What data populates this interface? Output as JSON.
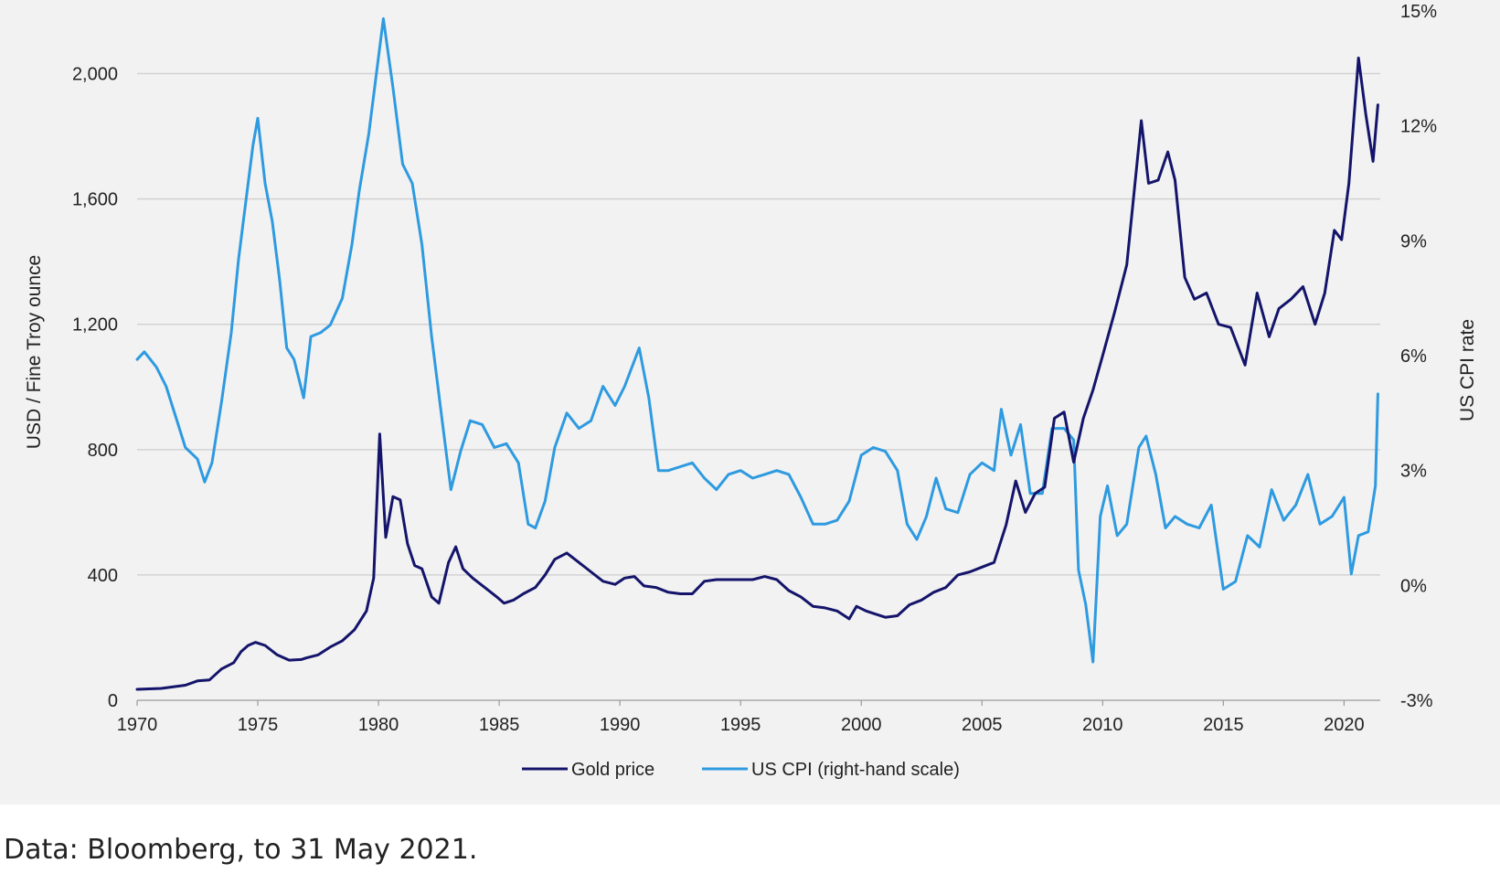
{
  "chart_data": {
    "type": "line",
    "title": "",
    "left_axis": {
      "label": "USD / Fine Troy ounce",
      "ylim": [
        0,
        2200
      ],
      "ticks": [
        "0",
        "400",
        "800",
        "1,200",
        "1,600",
        "2,000"
      ],
      "tick_values": [
        0,
        400,
        800,
        1200,
        1600,
        2000
      ]
    },
    "right_axis": {
      "label": "US CPI rate",
      "ylim": [
        -3,
        15
      ],
      "ticks": [
        "-3%",
        "0%",
        "3%",
        "6%",
        "9%",
        "12%",
        "15%"
      ],
      "tick_values": [
        -3,
        0,
        3,
        6,
        9,
        12,
        15
      ]
    },
    "x_axis": {
      "xlim": [
        1970,
        2021.5
      ],
      "ticks": [
        "1970",
        "1975",
        "1980",
        "1985",
        "1990",
        "1995",
        "2000",
        "2005",
        "2010",
        "2015",
        "2020"
      ],
      "tick_values": [
        1970,
        1975,
        1980,
        1985,
        1990,
        1995,
        2000,
        2005,
        2010,
        2015,
        2020
      ]
    },
    "grid": "horizontal",
    "legend_position": "bottom-center",
    "series": [
      {
        "name": "Gold price",
        "axis": "left",
        "color": "#14146b",
        "points": [
          [
            1970,
            35
          ],
          [
            1971,
            38
          ],
          [
            1972,
            48
          ],
          [
            1972.5,
            62
          ],
          [
            1973,
            65
          ],
          [
            1973.5,
            100
          ],
          [
            1974,
            120
          ],
          [
            1974.3,
            155
          ],
          [
            1974.6,
            175
          ],
          [
            1974.9,
            185
          ],
          [
            1975.3,
            175
          ],
          [
            1975.8,
            145
          ],
          [
            1976.3,
            128
          ],
          [
            1976.8,
            130
          ],
          [
            1977,
            135
          ],
          [
            1977.5,
            145
          ],
          [
            1978,
            170
          ],
          [
            1978.5,
            190
          ],
          [
            1979,
            225
          ],
          [
            1979.5,
            285
          ],
          [
            1979.8,
            390
          ],
          [
            1980.05,
            850
          ],
          [
            1980.3,
            520
          ],
          [
            1980.6,
            650
          ],
          [
            1980.9,
            640
          ],
          [
            1981.2,
            500
          ],
          [
            1981.5,
            430
          ],
          [
            1981.8,
            420
          ],
          [
            1982.2,
            330
          ],
          [
            1982.5,
            310
          ],
          [
            1982.9,
            440
          ],
          [
            1983.2,
            490
          ],
          [
            1983.5,
            420
          ],
          [
            1983.9,
            390
          ],
          [
            1984.4,
            360
          ],
          [
            1984.9,
            330
          ],
          [
            1985.2,
            310
          ],
          [
            1985.6,
            320
          ],
          [
            1986,
            340
          ],
          [
            1986.5,
            360
          ],
          [
            1986.9,
            400
          ],
          [
            1987.3,
            450
          ],
          [
            1987.8,
            470
          ],
          [
            1988.3,
            440
          ],
          [
            1988.8,
            410
          ],
          [
            1989.3,
            380
          ],
          [
            1989.8,
            370
          ],
          [
            1990.2,
            390
          ],
          [
            1990.6,
            395
          ],
          [
            1991,
            365
          ],
          [
            1991.5,
            360
          ],
          [
            1992,
            345
          ],
          [
            1992.5,
            340
          ],
          [
            1993,
            340
          ],
          [
            1993.5,
            380
          ],
          [
            1994,
            385
          ],
          [
            1994.5,
            385
          ],
          [
            1995,
            385
          ],
          [
            1995.5,
            385
          ],
          [
            1996,
            395
          ],
          [
            1996.5,
            385
          ],
          [
            1997,
            350
          ],
          [
            1997.5,
            330
          ],
          [
            1998,
            300
          ],
          [
            1998.5,
            295
          ],
          [
            1999,
            285
          ],
          [
            1999.5,
            260
          ],
          [
            1999.8,
            300
          ],
          [
            2000.2,
            285
          ],
          [
            2000.6,
            275
          ],
          [
            2001,
            265
          ],
          [
            2001.5,
            270
          ],
          [
            2002,
            305
          ],
          [
            2002.5,
            320
          ],
          [
            2003,
            345
          ],
          [
            2003.5,
            360
          ],
          [
            2004,
            400
          ],
          [
            2004.5,
            410
          ],
          [
            2005,
            425
          ],
          [
            2005.5,
            440
          ],
          [
            2006,
            560
          ],
          [
            2006.4,
            700
          ],
          [
            2006.8,
            600
          ],
          [
            2007.2,
            660
          ],
          [
            2007.6,
            680
          ],
          [
            2008,
            900
          ],
          [
            2008.4,
            920
          ],
          [
            2008.8,
            760
          ],
          [
            2009.2,
            900
          ],
          [
            2009.6,
            990
          ],
          [
            2010,
            1100
          ],
          [
            2010.5,
            1240
          ],
          [
            2011,
            1390
          ],
          [
            2011.6,
            1850
          ],
          [
            2011.9,
            1650
          ],
          [
            2012.3,
            1660
          ],
          [
            2012.7,
            1750
          ],
          [
            2013,
            1660
          ],
          [
            2013.4,
            1350
          ],
          [
            2013.8,
            1280
          ],
          [
            2014.3,
            1300
          ],
          [
            2014.8,
            1200
          ],
          [
            2015.3,
            1190
          ],
          [
            2015.9,
            1070
          ],
          [
            2016.4,
            1300
          ],
          [
            2016.9,
            1160
          ],
          [
            2017.3,
            1250
          ],
          [
            2017.8,
            1280
          ],
          [
            2018.3,
            1320
          ],
          [
            2018.8,
            1200
          ],
          [
            2019.2,
            1300
          ],
          [
            2019.6,
            1500
          ],
          [
            2019.9,
            1470
          ],
          [
            2020.2,
            1650
          ],
          [
            2020.6,
            2050
          ],
          [
            2020.9,
            1870
          ],
          [
            2021.2,
            1720
          ],
          [
            2021.4,
            1900
          ]
        ]
      },
      {
        "name": "US CPI (right-hand scale)",
        "axis": "right",
        "color": "#2e9ae0",
        "points": [
          [
            1970,
            5.9
          ],
          [
            1970.3,
            6.1
          ],
          [
            1970.8,
            5.7
          ],
          [
            1971.2,
            5.2
          ],
          [
            1971.6,
            4.4
          ],
          [
            1972,
            3.6
          ],
          [
            1972.5,
            3.3
          ],
          [
            1972.8,
            2.7
          ],
          [
            1973.1,
            3.2
          ],
          [
            1973.5,
            4.8
          ],
          [
            1973.9,
            6.6
          ],
          [
            1974.2,
            8.5
          ],
          [
            1974.5,
            10
          ],
          [
            1974.8,
            11.5
          ],
          [
            1975,
            12.2
          ],
          [
            1975.3,
            10.5
          ],
          [
            1975.6,
            9.5
          ],
          [
            1975.9,
            8.0
          ],
          [
            1976.2,
            6.2
          ],
          [
            1976.5,
            5.9
          ],
          [
            1976.9,
            4.9
          ],
          [
            1977.2,
            6.5
          ],
          [
            1977.6,
            6.6
          ],
          [
            1978,
            6.8
          ],
          [
            1978.5,
            7.5
          ],
          [
            1978.9,
            8.9
          ],
          [
            1979.2,
            10.3
          ],
          [
            1979.6,
            11.8
          ],
          [
            1980.2,
            14.8
          ],
          [
            1980.6,
            13.0
          ],
          [
            1981,
            11.0
          ],
          [
            1981.4,
            10.5
          ],
          [
            1981.8,
            8.9
          ],
          [
            1982.2,
            6.5
          ],
          [
            1982.6,
            4.5
          ],
          [
            1983,
            2.5
          ],
          [
            1983.4,
            3.5
          ],
          [
            1983.8,
            4.3
          ],
          [
            1984.3,
            4.2
          ],
          [
            1984.8,
            3.6
          ],
          [
            1985.3,
            3.7
          ],
          [
            1985.8,
            3.2
          ],
          [
            1986.2,
            1.6
          ],
          [
            1986.5,
            1.5
          ],
          [
            1986.9,
            2.2
          ],
          [
            1987.3,
            3.6
          ],
          [
            1987.8,
            4.5
          ],
          [
            1988.3,
            4.1
          ],
          [
            1988.8,
            4.3
          ],
          [
            1989.3,
            5.2
          ],
          [
            1989.8,
            4.7
          ],
          [
            1990.2,
            5.2
          ],
          [
            1990.8,
            6.2
          ],
          [
            1991.2,
            4.9
          ],
          [
            1991.6,
            3.0
          ],
          [
            1992,
            3.0
          ],
          [
            1992.5,
            3.1
          ],
          [
            1993,
            3.2
          ],
          [
            1993.5,
            2.8
          ],
          [
            1994,
            2.5
          ],
          [
            1994.5,
            2.9
          ],
          [
            1995,
            3.0
          ],
          [
            1995.5,
            2.8
          ],
          [
            1996,
            2.9
          ],
          [
            1996.5,
            3.0
          ],
          [
            1997,
            2.9
          ],
          [
            1997.5,
            2.3
          ],
          [
            1998,
            1.6
          ],
          [
            1998.5,
            1.6
          ],
          [
            1999,
            1.7
          ],
          [
            1999.5,
            2.2
          ],
          [
            2000,
            3.4
          ],
          [
            2000.5,
            3.6
          ],
          [
            2001,
            3.5
          ],
          [
            2001.5,
            3.0
          ],
          [
            2001.9,
            1.6
          ],
          [
            2002.3,
            1.2
          ],
          [
            2002.7,
            1.8
          ],
          [
            2003.1,
            2.8
          ],
          [
            2003.5,
            2.0
          ],
          [
            2004,
            1.9
          ],
          [
            2004.5,
            2.9
          ],
          [
            2005,
            3.2
          ],
          [
            2005.5,
            3.0
          ],
          [
            2005.8,
            4.6
          ],
          [
            2006.2,
            3.4
          ],
          [
            2006.6,
            4.2
          ],
          [
            2007,
            2.4
          ],
          [
            2007.5,
            2.4
          ],
          [
            2007.9,
            4.1
          ],
          [
            2008.4,
            4.1
          ],
          [
            2008.8,
            3.8
          ],
          [
            2009,
            0.4
          ],
          [
            2009.3,
            -0.5
          ],
          [
            2009.6,
            -2.0
          ],
          [
            2009.9,
            1.8
          ],
          [
            2010.2,
            2.6
          ],
          [
            2010.6,
            1.3
          ],
          [
            2011,
            1.6
          ],
          [
            2011.5,
            3.6
          ],
          [
            2011.8,
            3.9
          ],
          [
            2012.2,
            2.9
          ],
          [
            2012.6,
            1.5
          ],
          [
            2013,
            1.8
          ],
          [
            2013.5,
            1.6
          ],
          [
            2014,
            1.5
          ],
          [
            2014.5,
            2.1
          ],
          [
            2015,
            -0.1
          ],
          [
            2015.5,
            0.1
          ],
          [
            2016,
            1.3
          ],
          [
            2016.5,
            1.0
          ],
          [
            2017,
            2.5
          ],
          [
            2017.5,
            1.7
          ],
          [
            2018,
            2.1
          ],
          [
            2018.5,
            2.9
          ],
          [
            2019,
            1.6
          ],
          [
            2019.5,
            1.8
          ],
          [
            2020,
            2.3
          ],
          [
            2020.3,
            0.3
          ],
          [
            2020.6,
            1.3
          ],
          [
            2021,
            1.4
          ],
          [
            2021.3,
            2.6
          ],
          [
            2021.4,
            5.0
          ]
        ]
      }
    ]
  },
  "legend": [
    {
      "label": "Gold price",
      "color": "#14146b"
    },
    {
      "label": "US CPI (right-hand scale)",
      "color": "#2e9ae0"
    }
  ],
  "source_note": "Data: Bloomberg, to 31 May 2021."
}
